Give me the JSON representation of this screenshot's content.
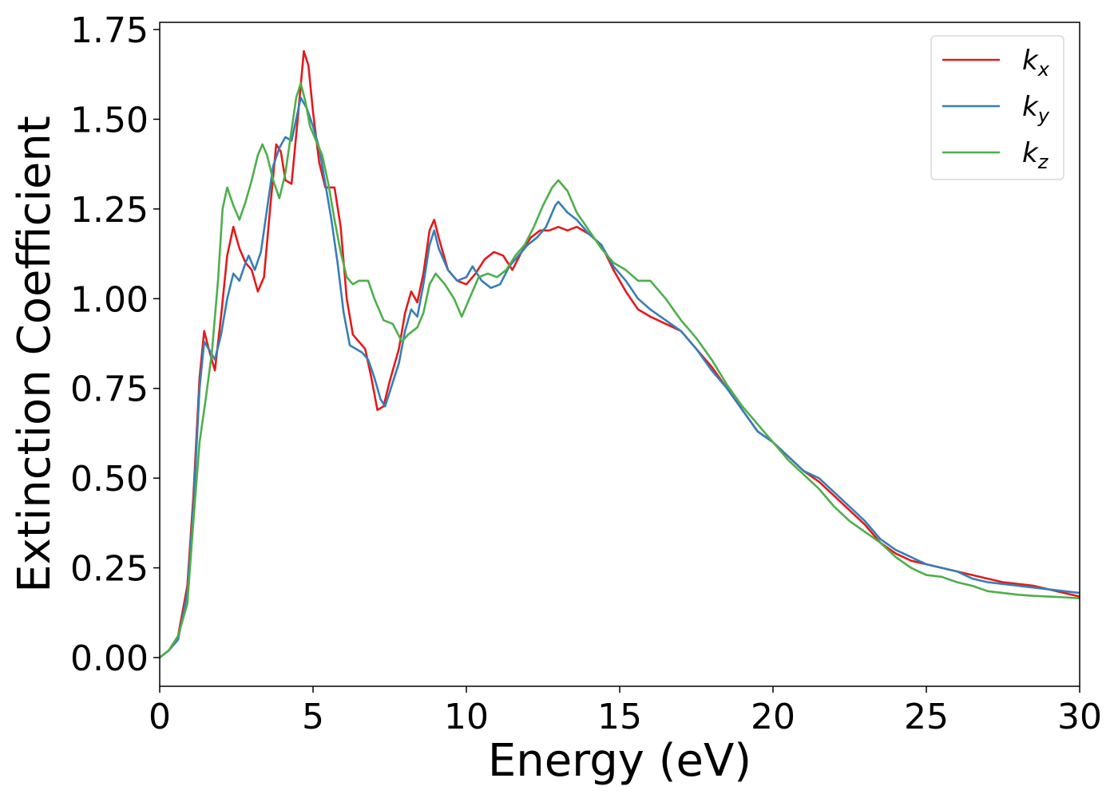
{
  "chart_data": {
    "type": "line",
    "title": "",
    "xlabel": "Energy (eV)",
    "ylabel": "Extinction Coefficient",
    "xlim": [
      0,
      30
    ],
    "ylim": [
      -0.08,
      1.77
    ],
    "x_ticks": [
      "0",
      "5",
      "10",
      "15",
      "20",
      "25",
      "30"
    ],
    "y_ticks": [
      "0.00",
      "0.25",
      "0.50",
      "0.75",
      "1.00",
      "1.25",
      "1.50",
      "1.75"
    ],
    "grid": false,
    "legend_position": "top-right",
    "series": [
      {
        "name": "k_x",
        "label_main": "k",
        "label_sub": "x",
        "color": "#e41a1c",
        "points": [
          [
            0,
            0
          ],
          [
            0.3,
            0.02
          ],
          [
            0.6,
            0.06
          ],
          [
            0.9,
            0.2
          ],
          [
            1.1,
            0.45
          ],
          [
            1.3,
            0.78
          ],
          [
            1.45,
            0.91
          ],
          [
            1.6,
            0.86
          ],
          [
            1.8,
            0.8
          ],
          [
            2.0,
            0.95
          ],
          [
            2.2,
            1.12
          ],
          [
            2.4,
            1.2
          ],
          [
            2.6,
            1.14
          ],
          [
            2.8,
            1.1
          ],
          [
            3.0,
            1.08
          ],
          [
            3.2,
            1.02
          ],
          [
            3.4,
            1.06
          ],
          [
            3.6,
            1.25
          ],
          [
            3.8,
            1.43
          ],
          [
            3.95,
            1.41
          ],
          [
            4.1,
            1.33
          ],
          [
            4.3,
            1.32
          ],
          [
            4.5,
            1.5
          ],
          [
            4.7,
            1.69
          ],
          [
            4.85,
            1.65
          ],
          [
            5.0,
            1.52
          ],
          [
            5.2,
            1.38
          ],
          [
            5.4,
            1.31
          ],
          [
            5.7,
            1.31
          ],
          [
            5.9,
            1.2
          ],
          [
            6.1,
            1.0
          ],
          [
            6.3,
            0.9
          ],
          [
            6.5,
            0.88
          ],
          [
            6.7,
            0.86
          ],
          [
            6.9,
            0.78
          ],
          [
            7.1,
            0.69
          ],
          [
            7.3,
            0.7
          ],
          [
            7.5,
            0.77
          ],
          [
            7.8,
            0.86
          ],
          [
            8.0,
            0.96
          ],
          [
            8.2,
            1.02
          ],
          [
            8.4,
            0.99
          ],
          [
            8.6,
            1.07
          ],
          [
            8.8,
            1.19
          ],
          [
            8.95,
            1.22
          ],
          [
            9.1,
            1.17
          ],
          [
            9.4,
            1.08
          ],
          [
            9.7,
            1.05
          ],
          [
            10.0,
            1.04
          ],
          [
            10.3,
            1.07
          ],
          [
            10.6,
            1.11
          ],
          [
            10.9,
            1.13
          ],
          [
            11.2,
            1.12
          ],
          [
            11.5,
            1.08
          ],
          [
            11.8,
            1.13
          ],
          [
            12.1,
            1.17
          ],
          [
            12.4,
            1.19
          ],
          [
            12.7,
            1.19
          ],
          [
            13.0,
            1.2
          ],
          [
            13.3,
            1.19
          ],
          [
            13.6,
            1.2
          ],
          [
            14.0,
            1.18
          ],
          [
            14.4,
            1.15
          ],
          [
            14.8,
            1.08
          ],
          [
            15.2,
            1.02
          ],
          [
            15.6,
            0.97
          ],
          [
            16.0,
            0.95
          ],
          [
            16.5,
            0.93
          ],
          [
            17.0,
            0.91
          ],
          [
            17.5,
            0.86
          ],
          [
            18.0,
            0.81
          ],
          [
            18.5,
            0.75
          ],
          [
            19.0,
            0.69
          ],
          [
            19.5,
            0.63
          ],
          [
            20.0,
            0.6
          ],
          [
            20.5,
            0.56
          ],
          [
            21.0,
            0.52
          ],
          [
            21.5,
            0.49
          ],
          [
            22.0,
            0.45
          ],
          [
            22.5,
            0.41
          ],
          [
            23.0,
            0.37
          ],
          [
            23.5,
            0.32
          ],
          [
            24.0,
            0.29
          ],
          [
            24.5,
            0.27
          ],
          [
            25.0,
            0.26
          ],
          [
            25.5,
            0.25
          ],
          [
            26.0,
            0.24
          ],
          [
            26.5,
            0.23
          ],
          [
            27.0,
            0.22
          ],
          [
            27.5,
            0.21
          ],
          [
            28.0,
            0.205
          ],
          [
            28.5,
            0.2
          ],
          [
            29.0,
            0.19
          ],
          [
            29.5,
            0.18
          ],
          [
            30.0,
            0.17
          ]
        ]
      },
      {
        "name": "k_y",
        "label_main": "k",
        "label_sub": "y",
        "color": "#377eb8",
        "points": [
          [
            0,
            0
          ],
          [
            0.3,
            0.02
          ],
          [
            0.6,
            0.05
          ],
          [
            0.9,
            0.18
          ],
          [
            1.1,
            0.42
          ],
          [
            1.3,
            0.75
          ],
          [
            1.45,
            0.88
          ],
          [
            1.6,
            0.86
          ],
          [
            1.8,
            0.83
          ],
          [
            2.0,
            0.9
          ],
          [
            2.2,
            1.0
          ],
          [
            2.4,
            1.07
          ],
          [
            2.6,
            1.05
          ],
          [
            2.8,
            1.1
          ],
          [
            2.9,
            1.12
          ],
          [
            3.1,
            1.08
          ],
          [
            3.3,
            1.13
          ],
          [
            3.5,
            1.25
          ],
          [
            3.7,
            1.37
          ],
          [
            3.9,
            1.42
          ],
          [
            4.1,
            1.45
          ],
          [
            4.3,
            1.44
          ],
          [
            4.45,
            1.5
          ],
          [
            4.6,
            1.56
          ],
          [
            4.8,
            1.53
          ],
          [
            5.0,
            1.48
          ],
          [
            5.2,
            1.42
          ],
          [
            5.4,
            1.32
          ],
          [
            5.6,
            1.22
          ],
          [
            5.8,
            1.1
          ],
          [
            6.0,
            0.96
          ],
          [
            6.2,
            0.87
          ],
          [
            6.4,
            0.86
          ],
          [
            6.6,
            0.85
          ],
          [
            6.8,
            0.83
          ],
          [
            7.0,
            0.78
          ],
          [
            7.2,
            0.72
          ],
          [
            7.35,
            0.7
          ],
          [
            7.5,
            0.74
          ],
          [
            7.8,
            0.82
          ],
          [
            8.0,
            0.91
          ],
          [
            8.2,
            0.97
          ],
          [
            8.4,
            0.95
          ],
          [
            8.6,
            1.04
          ],
          [
            8.8,
            1.15
          ],
          [
            8.95,
            1.19
          ],
          [
            9.1,
            1.14
          ],
          [
            9.4,
            1.08
          ],
          [
            9.7,
            1.05
          ],
          [
            10.0,
            1.06
          ],
          [
            10.2,
            1.09
          ],
          [
            10.5,
            1.05
          ],
          [
            10.8,
            1.03
          ],
          [
            11.1,
            1.04
          ],
          [
            11.4,
            1.09
          ],
          [
            11.7,
            1.12
          ],
          [
            12.0,
            1.15
          ],
          [
            12.3,
            1.17
          ],
          [
            12.6,
            1.2
          ],
          [
            12.9,
            1.26
          ],
          [
            13.0,
            1.27
          ],
          [
            13.3,
            1.24
          ],
          [
            13.6,
            1.22
          ],
          [
            14.0,
            1.18
          ],
          [
            14.4,
            1.15
          ],
          [
            14.8,
            1.09
          ],
          [
            15.2,
            1.05
          ],
          [
            15.6,
            1.0
          ],
          [
            16.0,
            0.97
          ],
          [
            16.5,
            0.94
          ],
          [
            17.0,
            0.91
          ],
          [
            17.5,
            0.86
          ],
          [
            18.0,
            0.8
          ],
          [
            18.5,
            0.75
          ],
          [
            19.0,
            0.69
          ],
          [
            19.5,
            0.63
          ],
          [
            20.0,
            0.6
          ],
          [
            20.5,
            0.56
          ],
          [
            21.0,
            0.52
          ],
          [
            21.5,
            0.5
          ],
          [
            22.0,
            0.46
          ],
          [
            22.5,
            0.42
          ],
          [
            23.0,
            0.38
          ],
          [
            23.5,
            0.33
          ],
          [
            24.0,
            0.3
          ],
          [
            24.5,
            0.28
          ],
          [
            25.0,
            0.26
          ],
          [
            25.5,
            0.25
          ],
          [
            26.0,
            0.24
          ],
          [
            26.5,
            0.22
          ],
          [
            27.0,
            0.21
          ],
          [
            27.5,
            0.205
          ],
          [
            28.0,
            0.2
          ],
          [
            28.5,
            0.195
          ],
          [
            29.0,
            0.19
          ],
          [
            29.5,
            0.185
          ],
          [
            30.0,
            0.18
          ]
        ]
      },
      {
        "name": "k_z",
        "label_main": "k",
        "label_sub": "z",
        "color": "#4daf4a",
        "points": [
          [
            0,
            0
          ],
          [
            0.3,
            0.02
          ],
          [
            0.6,
            0.06
          ],
          [
            0.9,
            0.15
          ],
          [
            1.1,
            0.38
          ],
          [
            1.3,
            0.6
          ],
          [
            1.5,
            0.72
          ],
          [
            1.7,
            0.85
          ],
          [
            1.9,
            1.05
          ],
          [
            2.05,
            1.25
          ],
          [
            2.2,
            1.31
          ],
          [
            2.4,
            1.26
          ],
          [
            2.6,
            1.22
          ],
          [
            2.8,
            1.27
          ],
          [
            3.0,
            1.33
          ],
          [
            3.2,
            1.4
          ],
          [
            3.35,
            1.43
          ],
          [
            3.5,
            1.4
          ],
          [
            3.7,
            1.33
          ],
          [
            3.9,
            1.28
          ],
          [
            4.1,
            1.35
          ],
          [
            4.3,
            1.47
          ],
          [
            4.45,
            1.56
          ],
          [
            4.6,
            1.6
          ],
          [
            4.75,
            1.55
          ],
          [
            4.9,
            1.48
          ],
          [
            5.1,
            1.44
          ],
          [
            5.3,
            1.4
          ],
          [
            5.5,
            1.32
          ],
          [
            5.7,
            1.22
          ],
          [
            5.9,
            1.13
          ],
          [
            6.1,
            1.06
          ],
          [
            6.3,
            1.04
          ],
          [
            6.5,
            1.05
          ],
          [
            6.8,
            1.05
          ],
          [
            7.0,
            1.0
          ],
          [
            7.3,
            0.94
          ],
          [
            7.6,
            0.93
          ],
          [
            7.9,
            0.88
          ],
          [
            8.1,
            0.9
          ],
          [
            8.4,
            0.92
          ],
          [
            8.6,
            0.96
          ],
          [
            8.8,
            1.04
          ],
          [
            9.0,
            1.07
          ],
          [
            9.3,
            1.04
          ],
          [
            9.6,
            1.0
          ],
          [
            9.85,
            0.95
          ],
          [
            10.1,
            1.0
          ],
          [
            10.4,
            1.06
          ],
          [
            10.7,
            1.07
          ],
          [
            11.0,
            1.06
          ],
          [
            11.3,
            1.08
          ],
          [
            11.6,
            1.12
          ],
          [
            11.9,
            1.15
          ],
          [
            12.2,
            1.2
          ],
          [
            12.5,
            1.26
          ],
          [
            12.8,
            1.31
          ],
          [
            13.0,
            1.33
          ],
          [
            13.3,
            1.3
          ],
          [
            13.6,
            1.24
          ],
          [
            14.0,
            1.19
          ],
          [
            14.4,
            1.14
          ],
          [
            14.8,
            1.1
          ],
          [
            15.2,
            1.08
          ],
          [
            15.6,
            1.05
          ],
          [
            16.0,
            1.05
          ],
          [
            16.5,
            1.0
          ],
          [
            17.0,
            0.94
          ],
          [
            17.5,
            0.89
          ],
          [
            18.0,
            0.83
          ],
          [
            18.5,
            0.76
          ],
          [
            19.0,
            0.7
          ],
          [
            19.5,
            0.65
          ],
          [
            20.0,
            0.6
          ],
          [
            20.5,
            0.55
          ],
          [
            21.0,
            0.51
          ],
          [
            21.5,
            0.47
          ],
          [
            22.0,
            0.42
          ],
          [
            22.5,
            0.38
          ],
          [
            23.0,
            0.35
          ],
          [
            23.5,
            0.32
          ],
          [
            24.0,
            0.28
          ],
          [
            24.5,
            0.25
          ],
          [
            25.0,
            0.23
          ],
          [
            25.5,
            0.225
          ],
          [
            26.0,
            0.21
          ],
          [
            26.5,
            0.2
          ],
          [
            27.0,
            0.185
          ],
          [
            27.5,
            0.18
          ],
          [
            28.0,
            0.175
          ],
          [
            28.5,
            0.172
          ],
          [
            29.0,
            0.17
          ],
          [
            29.5,
            0.168
          ],
          [
            30.0,
            0.165
          ]
        ]
      }
    ]
  }
}
